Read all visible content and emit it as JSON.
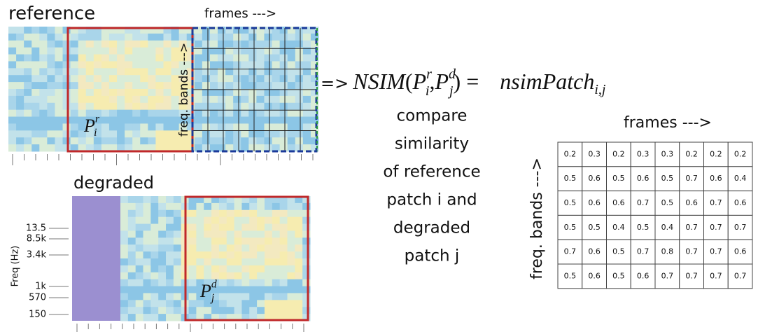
{
  "reference": {
    "title": "reference",
    "frames_label": "frames --->",
    "bands_label": "freq. bands --->",
    "patch": {
      "base": "P",
      "sup": "r",
      "sub": "i"
    }
  },
  "degraded": {
    "title": "degraded",
    "y_axis_label": "Freq (Hz)",
    "y_ticks": [
      "13.5",
      "8.5k",
      "3.4k",
      "1k",
      "570",
      "150"
    ],
    "patch": {
      "base": "P",
      "sup": "d",
      "sub": "j"
    }
  },
  "formula": {
    "arrow": "=>",
    "function": "NSIM",
    "open": "(",
    "arg1": {
      "base": "P",
      "sup": "r",
      "sub": "i"
    },
    "separator": ",",
    "arg2": {
      "base": "P",
      "sup": "d",
      "sub": "j"
    },
    "close": ")",
    "equals": "=",
    "result": {
      "base": "nsimPatch",
      "sub": "i,j"
    }
  },
  "description": [
    "compare",
    "similarity",
    "of reference",
    "patch i and",
    "degraded",
    "patch j"
  ],
  "table": {
    "frames_label": "frames --->",
    "bands_label": "freq. bands --->",
    "rows": [
      [
        0.2,
        0.3,
        0.2,
        0.3,
        0.3,
        0.2,
        0.2,
        0.2
      ],
      [
        0.5,
        0.6,
        0.5,
        0.6,
        0.5,
        0.7,
        0.6,
        0.4
      ],
      [
        0.5,
        0.6,
        0.6,
        0.7,
        0.5,
        0.6,
        0.7,
        0.6
      ],
      [
        0.5,
        0.5,
        0.4,
        0.5,
        0.4,
        0.7,
        0.7,
        0.7
      ],
      [
        0.7,
        0.6,
        0.5,
        0.7,
        0.8,
        0.7,
        0.7,
        0.6
      ],
      [
        0.5,
        0.6,
        0.5,
        0.6,
        0.7,
        0.7,
        0.7,
        0.7
      ]
    ]
  }
}
